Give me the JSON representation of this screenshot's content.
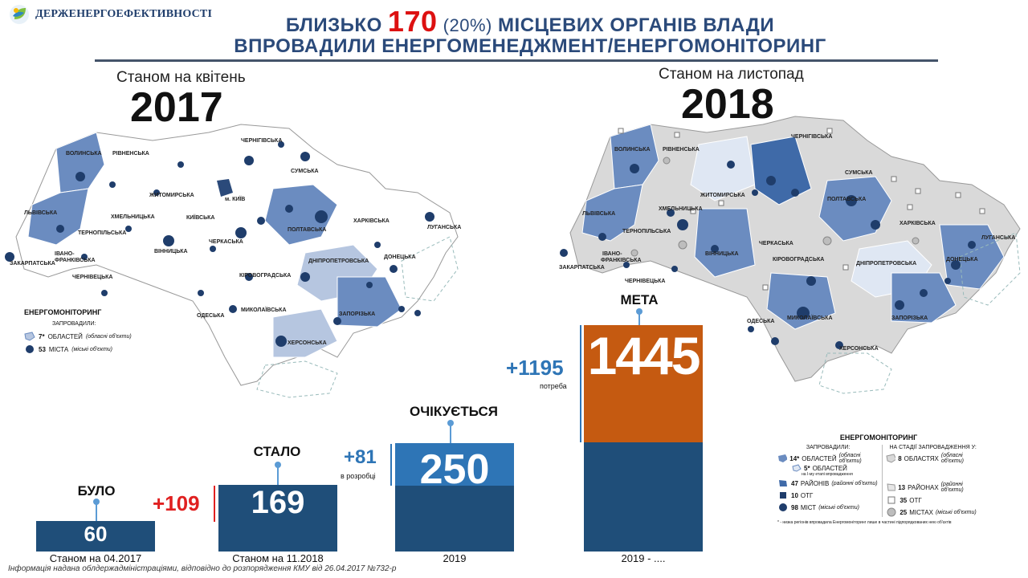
{
  "logo": {
    "text": "ДЕРЖЕНЕРГОЕФЕКТИВНОСТІ",
    "icon": "leaf-logo-icon"
  },
  "header": {
    "line1_prefix": "БЛИЗЬКО",
    "line1_number": "170",
    "line1_pct": "(20%)",
    "line1_suffix": "МІСЦЕВИХ ОРГАНІВ ВЛАДИ",
    "line2": "ВПРОВАДИЛИ ЕНЕРГОМЕНЕДЖМЕНТ/ЕНЕРГОМОНІТОРИНГ"
  },
  "left_map": {
    "as_of": "Станом на квітень",
    "year": "2017",
    "regions": [
      "ВОЛИНСЬКА",
      "РІВНЕНСЬКА",
      "ЧЕРНІГІВСЬКА",
      "СУМСЬКА",
      "ЖИТОМИРСЬКА",
      "м. КИЇВ",
      "КИЇВСЬКА",
      "ЛЬВІВСЬКА",
      "ХМЕЛЬНИЦЬКА",
      "ТЕРНОПІЛЬСЬКА",
      "ПОЛТАВСЬКА",
      "ХАРКІВСЬКА",
      "ЛУГАНСЬКА",
      "ІВАНО-ФРАНКІВСЬКА",
      "ЗАКАРПАТСЬКА",
      "ВІННИЦЬКА",
      "ЧЕРКАСЬКА",
      "ДОНЕЦЬКА",
      "ДНІПРОПЕТРОВСЬКА",
      "ЧЕРНІВЕЦЬКА",
      "КІРОВОГРАДСЬКА",
      "ОДЕСЬКА",
      "МИКОЛАЇВСЬКА",
      "ЗАПОРІЗЬКА",
      "ХЕРСОНСЬКА"
    ],
    "legend": {
      "title": "ЕНЕРГОМОНІТОРИНГ",
      "subtitle": "ЗАПРОВАДИЛИ:",
      "item1_num": "7*",
      "item1_text": "ОБЛАСТЕЙ",
      "item1_note": "(обласні об'єкти)",
      "item2_num": "53",
      "item2_text": "МІСТА",
      "item2_note": "(міські об'єкти)"
    }
  },
  "right_map": {
    "as_of": "Станом на листопад",
    "year": "2018",
    "regions": [
      "ВОЛИНСЬКА",
      "РІВНЕНСЬКА",
      "ЧЕРНІГІВСЬКА",
      "СУМСЬКА",
      "ЖИТОМИРСЬКА",
      "ЛЬВІВСЬКА",
      "ХМЕЛЬНИЦЬКА",
      "ПОЛТАВСЬКА",
      "ХАРКІВСЬКА",
      "ЛУГАНСЬКА",
      "ТЕРНОПІЛЬСЬКА",
      "ВІННИЦЬКА",
      "ІВАНО-ФРАНКІВСЬКА",
      "ЧЕРКАСЬКА",
      "ДОНЕЦЬКА",
      "ЗАКАРПАТСЬКА",
      "КІРОВОГРАДСЬКА",
      "ДНІПРОПЕТРОВСЬКА",
      "ЧЕРНІВЕЦЬКА",
      "ОДЕСЬКА",
      "МИКОЛАЇВСЬКА",
      "ЗАПОРІЗЬКА",
      "ХЕРСОНСЬКА"
    ],
    "legend": {
      "title": "ЕНЕРГОМОНІТОРИНГ",
      "col1_head": "ЗАПРОВАДИЛИ:",
      "col2_head": "НА СТАДІЇ ЗАПРОВАДЖЕННЯ У:",
      "r1_num": "14*",
      "r1_text": "ОБЛАСТЕЙ",
      "r1_note": "(обласні об'єкти)",
      "r1b_num": "5*",
      "r1b_text": "ОБЛАСТЕЙ",
      "r1b_note": "на І-му етапі впровадження",
      "r2_num": "47",
      "r2_text": "РАЙОНІВ",
      "r2_note": "(районні об'єкти)",
      "r3_num": "10",
      "r3_text": "ОТГ",
      "r4_num": "98",
      "r4_text": "МІСТ",
      "r4_note": "(міські об'єкти)",
      "c2r1_num": "8",
      "c2r1_text": "ОБЛАСТЯХ",
      "c2r1_note": "(обласні об'єкти)",
      "c2r2_num": "13",
      "c2r2_text": "РАЙОНАХ",
      "c2r2_note": "(районні об'єкти)",
      "c2r3_num": "35",
      "c2r3_text": "ОТГ",
      "c2r4_num": "25",
      "c2r4_text": "МІСТАХ",
      "c2r4_note": "(міські об'єкти)",
      "footnote": "* - низка регіонів впровадила Енергомоніторинг лише в частині підпорядкованих нею об'єктів"
    }
  },
  "chart_data": {
    "type": "bar",
    "categories": [
      "Станом на 04.2017",
      "Станом на 11.2018",
      "2019",
      "2019 - ...."
    ],
    "stage_labels": [
      "БУЛО",
      "СТАЛО",
      "ОЧІКУЄТЬСЯ",
      "МЕТА"
    ],
    "values": [
      60,
      169,
      250,
      1445
    ],
    "increments": [
      "",
      "+109",
      "+81",
      "+1195"
    ],
    "increment_notes": [
      "",
      "",
      "в розробці",
      "потреба"
    ],
    "colors": {
      "base": "#1f4e79",
      "planned": "#2e75b6",
      "target": "#c55a11",
      "delta_red": "#e02020",
      "delta_blue": "#2e75b6"
    }
  },
  "footnote": "Інформація надана облдержадміністраціями, відповідно до розпорядження КМУ від 26.04.2017 №732-р"
}
